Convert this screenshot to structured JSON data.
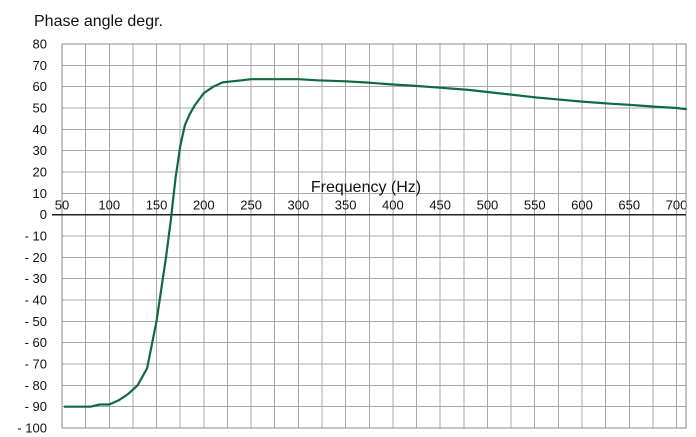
{
  "chart_data": {
    "type": "line",
    "title": "Phase angle degr.",
    "xlabel": "Frequency (Hz)",
    "ylabel": "",
    "xlim": [
      50,
      710
    ],
    "ylim": [
      -100,
      80
    ],
    "x_ticks": [
      "50",
      "100",
      "150",
      "200",
      "250",
      "300",
      "350",
      "400",
      "450",
      "500",
      "550",
      "600",
      "650",
      "700"
    ],
    "y_ticks": [
      "80",
      "70",
      "60",
      "50",
      "40",
      "30",
      "20",
      "10",
      "0",
      "- 10",
      "- 20",
      "- 30",
      "- 40",
      "- 50",
      "- 60",
      "- 70",
      "- 80",
      "- 90",
      "- 100"
    ],
    "grid": true,
    "series": [
      {
        "color": "#0e6b3f",
        "x": [
          53,
          62,
          72,
          80,
          90,
          100,
          110,
          120,
          130,
          140,
          150,
          160,
          165,
          170,
          175,
          180,
          185,
          190,
          195,
          200,
          210,
          220,
          230,
          240,
          250,
          260,
          270,
          280,
          300,
          320,
          350,
          370,
          400,
          420,
          450,
          480,
          500,
          520,
          550,
          600,
          630,
          650,
          680,
          700,
          710
        ],
        "y": [
          -90,
          -90,
          -90,
          -90,
          -89,
          -89,
          -87,
          -84,
          -80,
          -72,
          -50,
          -20,
          -3,
          17,
          32,
          42,
          47,
          51,
          54,
          57,
          60,
          62,
          62.5,
          63,
          63.5,
          63.5,
          63.5,
          63.5,
          63.5,
          63,
          62.5,
          62,
          61,
          60.5,
          59.5,
          58.5,
          57.5,
          56.5,
          55,
          53,
          52,
          51.5,
          50.5,
          50,
          49.5
        ]
      }
    ]
  }
}
